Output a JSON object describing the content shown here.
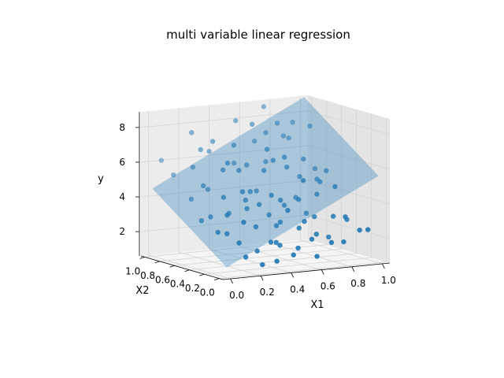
{
  "chart_data": {
    "type": "scatter",
    "projection": "3d",
    "title": "multi variable linear regression",
    "xlabel": "X1",
    "ylabel": "X2",
    "zlabel": "y",
    "xlim": [
      -0.05,
      1.05
    ],
    "ylim": [
      -0.05,
      1.05
    ],
    "zlim": [
      0.6,
      8.9
    ],
    "x_ticks": [
      "0.0",
      "0.2",
      "0.4",
      "0.6",
      "0.8",
      "1.0"
    ],
    "y_ticks": [
      "0.0",
      "0.2",
      "0.4",
      "0.6",
      "0.8",
      "1.0"
    ],
    "z_ticks": [
      "2",
      "4",
      "6",
      "8"
    ],
    "x_tick_values": [
      0.0,
      0.2,
      0.4,
      0.6,
      0.8,
      1.0
    ],
    "y_tick_values": [
      0.0,
      0.2,
      0.4,
      0.6,
      0.8,
      1.0
    ],
    "z_tick_values": [
      2,
      4,
      6,
      8
    ],
    "view": {
      "elev": 8,
      "azim": -68
    },
    "regression_plane": {
      "intercept": 1.2,
      "coef_x1": 4.4,
      "coef_x2": 3.3
    },
    "colors": {
      "points": "#1f77b4",
      "plane": "#1f77b4",
      "grid": "#d4d4d4",
      "pane": "#f2f2f2"
    },
    "points": {
      "x1": [
        0.1,
        0.2,
        0.35,
        0.5,
        0.6,
        0.7,
        0.8,
        0.9,
        0.3,
        0.45,
        0.55,
        0.65,
        0.25,
        0.4,
        0.75,
        0.85,
        0.15,
        0.05,
        0.95,
        0.6,
        0.15,
        0.3,
        0.45,
        0.55,
        0.7,
        0.8,
        0.9,
        0.35,
        0.5,
        0.65,
        0.2,
        0.4,
        0.6,
        0.75,
        0.85,
        0.1,
        0.25,
        0.5,
        0.7,
        0.95,
        0.1,
        0.2,
        0.3,
        0.4,
        0.5,
        0.6,
        0.7,
        0.8,
        0.9,
        0.35,
        0.45,
        0.55,
        0.65,
        0.25,
        0.15,
        0.75,
        0.85,
        0.05,
        0.5,
        0.3,
        0.1,
        0.2,
        0.3,
        0.4,
        0.5,
        0.6,
        0.7,
        0.8,
        0.9,
        0.35,
        0.55,
        0.65,
        0.45,
        0.25,
        0.15,
        0.75,
        0.85,
        0.05,
        0.6,
        0.4,
        0.15,
        0.35,
        0.5,
        0.7,
        0.9,
        0.25,
        0.6,
        0.8,
        0.45,
        0.95
      ],
      "x2": [
        0.92,
        0.88,
        0.95,
        0.9,
        0.85,
        0.93,
        0.87,
        0.95,
        0.8,
        0.82,
        0.78,
        0.8,
        0.86,
        0.72,
        0.85,
        0.9,
        0.76,
        0.98,
        0.82,
        0.7,
        0.62,
        0.6,
        0.65,
        0.58,
        0.62,
        0.6,
        0.65,
        0.55,
        0.52,
        0.55,
        0.66,
        0.5,
        0.6,
        0.55,
        0.52,
        0.68,
        0.56,
        0.62,
        0.5,
        0.6,
        0.42,
        0.45,
        0.4,
        0.38,
        0.42,
        0.45,
        0.4,
        0.42,
        0.38,
        0.46,
        0.35,
        0.4,
        0.36,
        0.48,
        0.3,
        0.46,
        0.48,
        0.44,
        0.3,
        0.34,
        0.2,
        0.18,
        0.22,
        0.15,
        0.2,
        0.18,
        0.25,
        0.2,
        0.22,
        0.12,
        0.15,
        0.12,
        0.25,
        0.1,
        0.14,
        0.16,
        0.14,
        0.22,
        0.08,
        0.1,
        0.05,
        0.04,
        0.06,
        0.02,
        0.05,
        0.03,
        0.01,
        0.06,
        0.02,
        0.04
      ],
      "y": [
        5.3,
        7.7,
        6.4,
        8.1,
        6.9,
        8.7,
        7.0,
        7.6,
        7.2,
        5.8,
        8.0,
        7.4,
        6.7,
        7.0,
        7.8,
        6.8,
        5.9,
        6.1,
        7.5,
        5.9,
        5.0,
        6.2,
        5.9,
        6.8,
        5.6,
        6.0,
        5.3,
        5.8,
        5.7,
        6.3,
        4.7,
        4.6,
        6.1,
        5.1,
        4.9,
        4.2,
        5.9,
        4.4,
        4.0,
        5.2,
        3.5,
        4.5,
        4.8,
        4.0,
        4.4,
        3.7,
        5.1,
        4.2,
        4.6,
        4.2,
        3.4,
        4.1,
        4.1,
        3.5,
        3.7,
        3.1,
        4.8,
        3.3,
        3.0,
        3.9,
        2.8,
        3.4,
        3.0,
        2.1,
        3.8,
        3.1,
        3.2,
        3.2,
        2.9,
        2.2,
        2.8,
        2.4,
        2.9,
        1.8,
        2.3,
        2.1,
        3.2,
        2.9,
        2.2,
        2.0,
        1.6,
        1.2,
        1.8,
        2.0,
        2.5,
        1.1,
        1.3,
        1.9,
        1.5,
        2.5
      ]
    }
  }
}
